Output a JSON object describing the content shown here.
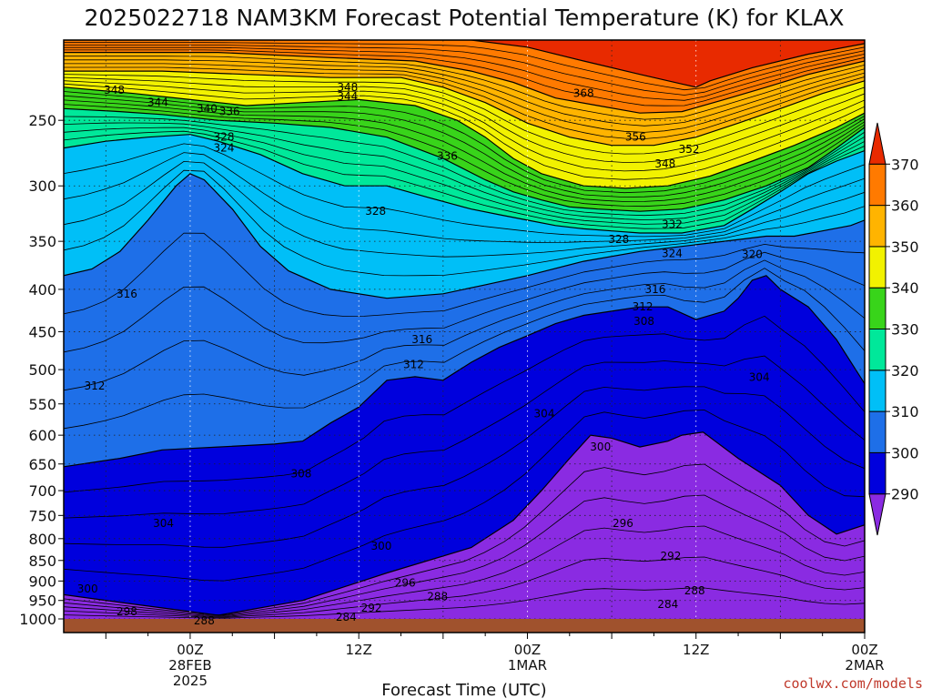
{
  "chart_data": {
    "type": "area",
    "title": "2025022718 NAM3KM Forecast Potential Temperature (K) for KLAX",
    "xlabel": "Forecast Time (UTC)",
    "ylabel": "",
    "y_scale": "log-pressure",
    "y_inverted": true,
    "ylim": [
      1000,
      200
    ],
    "y_ticks": [
      250,
      300,
      350,
      400,
      450,
      500,
      550,
      600,
      650,
      700,
      750,
      800,
      850,
      900,
      950,
      1000
    ],
    "x_unit": "hours from 2025-02-27 18Z",
    "xlim": [
      -3,
      54
    ],
    "x_ticks": [
      {
        "hour": 6,
        "lines": [
          "00Z",
          "28FEB",
          "2025"
        ]
      },
      {
        "hour": 18,
        "lines": [
          "12Z"
        ]
      },
      {
        "hour": 30,
        "lines": [
          "00Z",
          "1MAR"
        ]
      },
      {
        "hour": 42,
        "lines": [
          "12Z"
        ]
      },
      {
        "hour": 54,
        "lines": [
          "00Z",
          "2MAR"
        ]
      }
    ],
    "grid": true,
    "colorbar": {
      "levels": [
        290,
        300,
        310,
        320,
        330,
        340,
        350,
        360,
        370
      ],
      "labels": [
        "290",
        "300",
        "310",
        "320",
        "330",
        "340",
        "350",
        "360",
        "370"
      ],
      "colors": [
        "#8a2be2",
        "#0000dd",
        "#1e6fe8",
        "#00bff7",
        "#00e89a",
        "#38d41a",
        "#f2f200",
        "#ffb400",
        "#ff7a00",
        "#e82a00"
      ]
    },
    "contour_labels": [
      {
        "x": 0.6,
        "p": 230,
        "v": "348"
      },
      {
        "x": 3.7,
        "p": 238,
        "v": "344"
      },
      {
        "x": 7.2,
        "p": 242,
        "v": "340"
      },
      {
        "x": 8.8,
        "p": 244,
        "v": "336"
      },
      {
        "x": 8.4,
        "p": 262,
        "v": "328"
      },
      {
        "x": 8.4,
        "p": 270,
        "v": "324"
      },
      {
        "x": 17.2,
        "p": 228,
        "v": "348"
      },
      {
        "x": 17.2,
        "p": 234,
        "v": "344"
      },
      {
        "x": 24.3,
        "p": 276,
        "v": "336"
      },
      {
        "x": 19.2,
        "p": 322,
        "v": "328"
      },
      {
        "x": 34.0,
        "p": 232,
        "v": "368"
      },
      {
        "x": 37.7,
        "p": 262,
        "v": "356"
      },
      {
        "x": 41.5,
        "p": 271,
        "v": "352"
      },
      {
        "x": 39.8,
        "p": 282,
        "v": "348"
      },
      {
        "x": 40.3,
        "p": 334,
        "v": "332"
      },
      {
        "x": 36.5,
        "p": 348,
        "v": "328"
      },
      {
        "x": 40.3,
        "p": 362,
        "v": "324"
      },
      {
        "x": 46.0,
        "p": 363,
        "v": "320"
      },
      {
        "x": 1.5,
        "p": 405,
        "v": "316"
      },
      {
        "x": 22.5,
        "p": 460,
        "v": "316"
      },
      {
        "x": 39.1,
        "p": 400,
        "v": "316"
      },
      {
        "x": 38.2,
        "p": 420,
        "v": "312"
      },
      {
        "x": 38.3,
        "p": 437,
        "v": "308"
      },
      {
        "x": -0.8,
        "p": 523,
        "v": "312"
      },
      {
        "x": 21.9,
        "p": 493,
        "v": "312"
      },
      {
        "x": 31.2,
        "p": 565,
        "v": "304"
      },
      {
        "x": 46.5,
        "p": 511,
        "v": "304"
      },
      {
        "x": 13.9,
        "p": 668,
        "v": "308"
      },
      {
        "x": 4.1,
        "p": 767,
        "v": "304"
      },
      {
        "x": 35.2,
        "p": 620,
        "v": "300"
      },
      {
        "x": 36.8,
        "p": 767,
        "v": "296"
      },
      {
        "x": 19.6,
        "p": 817,
        "v": "300"
      },
      {
        "x": -1.3,
        "p": 920,
        "v": "300"
      },
      {
        "x": 21.3,
        "p": 905,
        "v": "296"
      },
      {
        "x": 40.2,
        "p": 840,
        "v": "292"
      },
      {
        "x": 1.5,
        "p": 980,
        "v": "298"
      },
      {
        "x": 23.6,
        "p": 940,
        "v": "288"
      },
      {
        "x": 18.9,
        "p": 970,
        "v": "292"
      },
      {
        "x": 17.1,
        "p": 995,
        "v": "284"
      },
      {
        "x": 7.0,
        "p": 1005,
        "v": "288"
      },
      {
        "x": 41.9,
        "p": 925,
        "v": "288"
      },
      {
        "x": 40.0,
        "p": 960,
        "v": "284"
      }
    ],
    "bands": [
      {
        "level": 300,
        "color": "#0000dd",
        "pts": [
          [
            -3,
            935
          ],
          [
            3,
            965
          ],
          [
            8,
            990
          ],
          [
            14,
            950
          ],
          [
            20,
            880
          ],
          [
            26,
            820
          ],
          [
            29,
            760
          ],
          [
            31,
            700
          ],
          [
            33,
            640
          ],
          [
            34.5,
            600
          ],
          [
            36,
            605
          ],
          [
            38,
            620
          ],
          [
            40,
            610
          ],
          [
            41,
            600
          ],
          [
            42.5,
            595
          ],
          [
            45,
            640
          ],
          [
            48,
            690
          ],
          [
            50,
            750
          ],
          [
            52,
            790
          ],
          [
            54,
            770
          ]
        ]
      },
      {
        "level": 310,
        "color": "#1e6fe8",
        "pts": [
          [
            -3,
            655
          ],
          [
            1,
            640
          ],
          [
            4,
            625
          ],
          [
            8,
            620
          ],
          [
            12,
            615
          ],
          [
            14,
            610
          ],
          [
            16,
            580
          ],
          [
            18,
            555
          ],
          [
            20,
            515
          ],
          [
            22,
            510
          ],
          [
            24,
            515
          ],
          [
            26,
            490
          ],
          [
            28,
            470
          ],
          [
            30,
            455
          ],
          [
            32,
            440
          ],
          [
            34,
            430
          ],
          [
            36,
            425
          ],
          [
            38,
            420
          ],
          [
            40,
            420
          ],
          [
            42,
            435
          ],
          [
            44,
            425
          ],
          [
            45,
            410
          ],
          [
            46,
            390
          ],
          [
            47,
            385
          ],
          [
            48,
            400
          ],
          [
            50,
            420
          ],
          [
            52,
            460
          ],
          [
            54,
            520
          ]
        ]
      },
      {
        "level": 320,
        "color": "#00bff7",
        "pts": [
          [
            -3,
            385
          ],
          [
            -1,
            378
          ],
          [
            1,
            360
          ],
          [
            3,
            330
          ],
          [
            5,
            300
          ],
          [
            6,
            290
          ],
          [
            7,
            295
          ],
          [
            9,
            320
          ],
          [
            11,
            355
          ],
          [
            13,
            380
          ],
          [
            16,
            400
          ],
          [
            20,
            410
          ],
          [
            24,
            405
          ],
          [
            27,
            395
          ],
          [
            30,
            385
          ],
          [
            34,
            370
          ],
          [
            38,
            360
          ],
          [
            41,
            355
          ],
          [
            44,
            350
          ],
          [
            47,
            345
          ],
          [
            49,
            345
          ],
          [
            51,
            340
          ],
          [
            53,
            335
          ],
          [
            54,
            330
          ]
        ]
      },
      {
        "level": 330,
        "color": "#00e89a",
        "pts": [
          [
            -3,
            270
          ],
          [
            0,
            265
          ],
          [
            3,
            262
          ],
          [
            6,
            260
          ],
          [
            8,
            265
          ],
          [
            11,
            275
          ],
          [
            14,
            290
          ],
          [
            17,
            300
          ],
          [
            20,
            300
          ],
          [
            23,
            310
          ],
          [
            26,
            320
          ],
          [
            28,
            325
          ],
          [
            30,
            330
          ],
          [
            32,
            335
          ],
          [
            34,
            338
          ],
          [
            36,
            340
          ],
          [
            38,
            342
          ],
          [
            41,
            342
          ],
          [
            44,
            335
          ],
          [
            46,
            320
          ],
          [
            48,
            305
          ],
          [
            50,
            290
          ],
          [
            52,
            280
          ],
          [
            54,
            272
          ]
        ]
      },
      {
        "level": 340,
        "color": "#38d41a",
        "pts": [
          [
            -3,
            242
          ],
          [
            1,
            244
          ],
          [
            4,
            246
          ],
          [
            8,
            250
          ],
          [
            12,
            252
          ],
          [
            16,
            255
          ],
          [
            20,
            262
          ],
          [
            24,
            278
          ],
          [
            27,
            295
          ],
          [
            29,
            305
          ],
          [
            31,
            312
          ],
          [
            33,
            318
          ],
          [
            35,
            320
          ],
          [
            38,
            322
          ],
          [
            41,
            320
          ],
          [
            44,
            312
          ],
          [
            47,
            300
          ],
          [
            50,
            285
          ],
          [
            52,
            270
          ],
          [
            54,
            255
          ]
        ]
      },
      {
        "level": 350,
        "color": "#f2f200",
        "pts": [
          [
            -3,
            228
          ],
          [
            2,
            232
          ],
          [
            6,
            236
          ],
          [
            10,
            240
          ],
          [
            14,
            238
          ],
          [
            18,
            236
          ],
          [
            22,
            240
          ],
          [
            25,
            250
          ],
          [
            27,
            262
          ],
          [
            29,
            278
          ],
          [
            31,
            290
          ],
          [
            34,
            300
          ],
          [
            37,
            302
          ],
          [
            40,
            300
          ],
          [
            43,
            292
          ],
          [
            46,
            280
          ],
          [
            49,
            268
          ],
          [
            52,
            255
          ],
          [
            54,
            245
          ]
        ]
      },
      {
        "level": 360,
        "color": "#ffb400",
        "pts": [
          [
            -3,
            218
          ],
          [
            4,
            218
          ],
          [
            10,
            220
          ],
          [
            16,
            222
          ],
          [
            21,
            222
          ],
          [
            24,
            228
          ],
          [
            27,
            238
          ],
          [
            30,
            252
          ],
          [
            33,
            262
          ],
          [
            36,
            268
          ],
          [
            39,
            268
          ],
          [
            42,
            262
          ],
          [
            45,
            252
          ],
          [
            48,
            242
          ],
          [
            51,
            232
          ],
          [
            54,
            224
          ]
        ]
      },
      {
        "level": 370,
        "color": "#ff7a00",
        "pts": [
          [
            -3,
            207
          ],
          [
            8,
            207
          ],
          [
            16,
            210
          ],
          [
            22,
            212
          ],
          [
            26,
            218
          ],
          [
            29,
            225
          ],
          [
            32,
            235
          ],
          [
            35,
            240
          ],
          [
            38,
            245
          ],
          [
            41,
            244
          ],
          [
            44,
            236
          ],
          [
            47,
            228
          ],
          [
            50,
            220
          ],
          [
            54,
            212
          ]
        ]
      },
      {
        "level": 380,
        "color": "#e82a00",
        "pts": [
          [
            -3,
            200
          ],
          [
            26,
            200
          ],
          [
            30,
            204
          ],
          [
            34,
            212
          ],
          [
            38,
            220
          ],
          [
            41,
            226
          ],
          [
            42,
            228
          ],
          [
            43,
            224
          ],
          [
            46,
            216
          ],
          [
            50,
            208
          ],
          [
            54,
            202
          ]
        ]
      }
    ]
  },
  "credit": "coolwx.com/models"
}
